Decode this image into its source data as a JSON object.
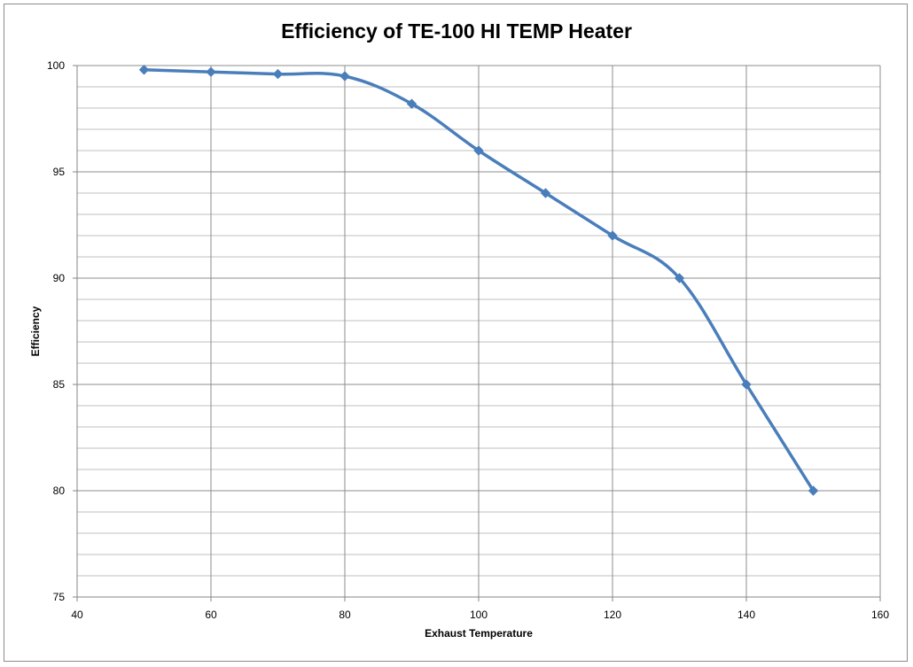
{
  "chart_data": {
    "type": "line",
    "title": "Efficiency of TE-100 HI TEMP Heater",
    "xlabel": "Exhaust Temperature",
    "ylabel": "Efficiency",
    "xlim": [
      40,
      160
    ],
    "ylim": [
      75,
      100
    ],
    "x_ticks": [
      40,
      60,
      80,
      100,
      120,
      140,
      160
    ],
    "y_ticks": [
      75,
      80,
      85,
      90,
      95,
      100
    ],
    "grid": true,
    "legend": "none",
    "series": [
      {
        "color": "#4a7ebb",
        "x": [
          50,
          60,
          70,
          80,
          90,
          100,
          110,
          120,
          130,
          140,
          150
        ],
        "y": [
          99.8,
          99.7,
          99.6,
          99.5,
          98.2,
          96,
          94,
          92,
          90,
          85,
          80
        ]
      }
    ]
  },
  "colors": {
    "line": "#4a7ebb",
    "major_grid": "#8c8c8c",
    "minor_grid": "#bfbfbf"
  }
}
